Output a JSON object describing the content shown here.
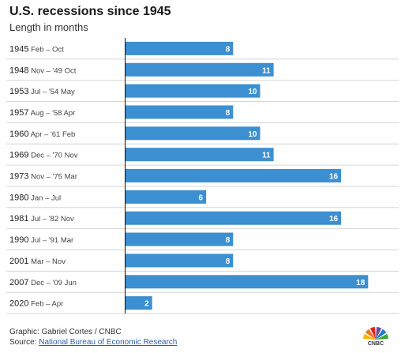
{
  "title": "U.S. recessions since 1945",
  "subtitle": "Length in months",
  "chart_data": {
    "type": "bar",
    "orientation": "horizontal",
    "categories": [
      {
        "year": "1945",
        "span": "Feb – Oct"
      },
      {
        "year": "1948",
        "span": "Nov – '49 Oct"
      },
      {
        "year": "1953",
        "span": "Jul – '54 May"
      },
      {
        "year": "1957",
        "span": "Aug – '58 Apr"
      },
      {
        "year": "1960",
        "span": "Apr – '61 Feb"
      },
      {
        "year": "1969",
        "span": "Dec – '70 Nov"
      },
      {
        "year": "1973",
        "span": "Nov – '75 Mar"
      },
      {
        "year": "1980",
        "span": "Jan – Jul"
      },
      {
        "year": "1981",
        "span": "Jul – '82 Nov"
      },
      {
        "year": "1990",
        "span": "Jul – '91 Mar"
      },
      {
        "year": "2001",
        "span": "Mar – Nov"
      },
      {
        "year": "2007",
        "span": "Dec – '09 Jun"
      },
      {
        "year": "2020",
        "span": "Feb – Apr"
      }
    ],
    "values": [
      8,
      11,
      10,
      8,
      10,
      11,
      16,
      6,
      16,
      8,
      8,
      18,
      2
    ],
    "bar_color": "#3c8fd0",
    "separator_color": "#d6d6d6",
    "value_label_color": "#ffffff"
  },
  "footer": {
    "credit": "Graphic: Gabriel Cortes / CNBC",
    "source_prefix": "Source: ",
    "source_link": "National Bureau of Economic Research"
  },
  "logo": {
    "text": "CNBC",
    "peacock_colors": [
      "#f7b500",
      "#ed7a23",
      "#e1251b",
      "#6b4c9a",
      "#1e7fc5",
      "#3fa535"
    ]
  }
}
